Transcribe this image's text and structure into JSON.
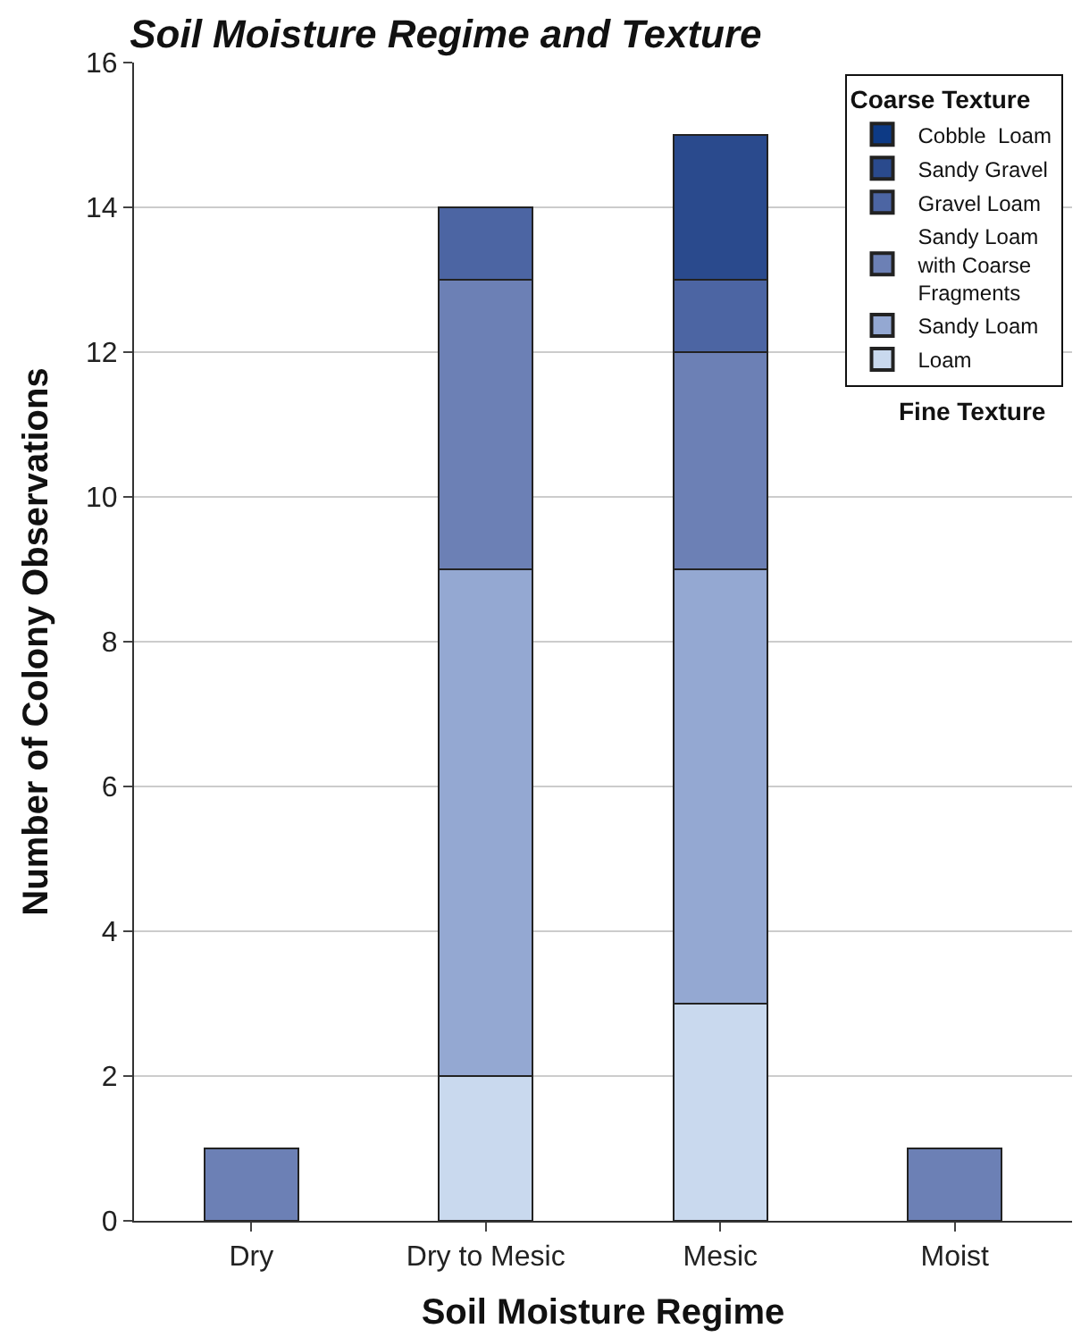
{
  "chart_data": {
    "type": "bar",
    "stacked": true,
    "title": "Soil Moisture Regime and Texture",
    "xlabel": "Soil Moisture Regime",
    "ylabel": "Number of Colony Observations",
    "categories": [
      "Dry",
      "Dry to Mesic",
      "Mesic",
      "Moist"
    ],
    "series": [
      {
        "name": "Loam",
        "color": "#c9d9ee",
        "values": [
          null,
          2,
          3,
          null
        ]
      },
      {
        "name": "Sandy Loam",
        "color": "#94a8d2",
        "values": [
          null,
          7,
          6,
          null
        ]
      },
      {
        "name": "Sandy Loam with Coarse Fragments",
        "color": "#6c80b5",
        "values": [
          1,
          4,
          3,
          1
        ]
      },
      {
        "name": "Gravel Loam",
        "color": "#4c65a3",
        "values": [
          null,
          1,
          1,
          null
        ]
      },
      {
        "name": "Sandy Gravel",
        "color": "#2a4a8d",
        "values": [
          null,
          null,
          2,
          null
        ]
      },
      {
        "name": "Cobble  Loam",
        "color": "#0d3a85",
        "values": [
          null,
          null,
          null,
          null
        ]
      }
    ],
    "ylim": [
      0,
      16
    ],
    "yticks": [
      0,
      2,
      4,
      6,
      8,
      10,
      12,
      14,
      16
    ],
    "grid": "y",
    "legend": "top right",
    "legend_title": "Coarse Texture",
    "annotations": [
      "Fine Texture"
    ]
  }
}
